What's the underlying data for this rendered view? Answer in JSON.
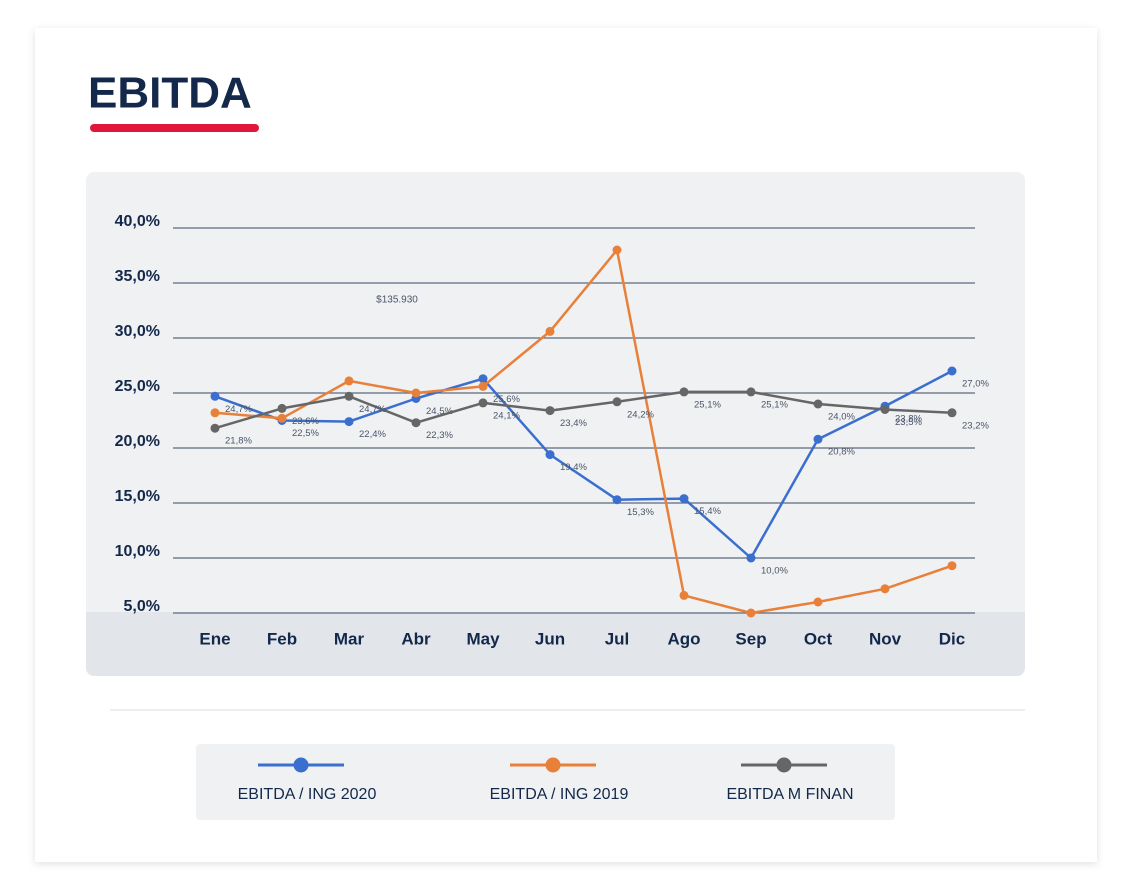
{
  "chart_data": {
    "type": "line",
    "title": "EBITDA",
    "annotation": "$135.930",
    "categories": [
      "Ene",
      "Feb",
      "Mar",
      "Abr",
      "May",
      "Jun",
      "Jul",
      "Ago",
      "Sep",
      "Oct",
      "Nov",
      "Dic"
    ],
    "series": [
      {
        "name": "EBITDA / ING 2020",
        "color": "#3a6fcf",
        "values": [
          24.7,
          22.5,
          22.4,
          24.5,
          26.3,
          19.4,
          15.3,
          15.4,
          10.0,
          20.8,
          23.8,
          27.0
        ],
        "value_labels": [
          "24,7%",
          "22,5%",
          "22,4%",
          "24,5%",
          null,
          "19,4%",
          "15,3%",
          "15,4%",
          "10,0%",
          "20,8%",
          "23,8%",
          "27,0%"
        ]
      },
      {
        "name": "EBITDA / ING 2019",
        "color": "#e8803a",
        "values": [
          23.2,
          22.7,
          26.1,
          25.0,
          25.6,
          30.6,
          38.0,
          6.6,
          5.0,
          6.0,
          7.2,
          9.3
        ],
        "value_labels": [
          null,
          null,
          null,
          null,
          "25,6%",
          null,
          null,
          null,
          null,
          null,
          null,
          null
        ]
      },
      {
        "name": "EBITDA M FINAN",
        "color": "#666666",
        "values": [
          21.8,
          23.6,
          24.7,
          22.3,
          24.1,
          23.4,
          24.2,
          25.1,
          25.1,
          24.0,
          23.5,
          23.2
        ],
        "value_labels": [
          "21,8%",
          "23,6%",
          "24,7%",
          "22,3%",
          "24,1%",
          "23,4%",
          "24,2%",
          "25,1%",
          "25,1%",
          "24,0%",
          "23,5%",
          "23,2%"
        ]
      }
    ],
    "ylim": [
      5,
      40
    ],
    "yticks": [
      {
        "value": 5,
        "label": "5,0%"
      },
      {
        "value": 10,
        "label": "10,0%"
      },
      {
        "value": 15,
        "label": "15,0%"
      },
      {
        "value": 20,
        "label": "20,0%"
      },
      {
        "value": 25,
        "label": "25,0%"
      },
      {
        "value": 30,
        "label": "30,0%"
      },
      {
        "value": 35,
        "label": "35,0%"
      },
      {
        "value": 40,
        "label": "40,0%"
      }
    ],
    "grid": true
  }
}
